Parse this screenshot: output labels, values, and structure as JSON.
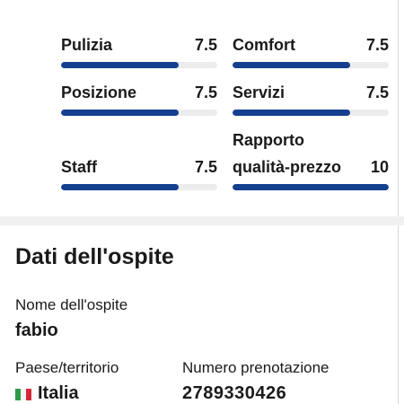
{
  "ratings": [
    {
      "label": "Pulizia",
      "score": 7.5
    },
    {
      "label": "Comfort",
      "score": 7.5
    },
    {
      "label": "Posizione",
      "score": 7.5
    },
    {
      "label": "Servizi",
      "score": 7.5
    },
    {
      "label": "Staff",
      "score": 7.5
    },
    {
      "label": "Rapporto qualità-prezzo",
      "score": 10
    }
  ],
  "guest": {
    "title": "Dati dell'ospite",
    "name_label": "Nome dell'ospite",
    "name": "fabio",
    "country_label": "Paese/territorio",
    "country": "Italia",
    "booking_label": "Numero prenotazione",
    "booking_number": "2789330426"
  }
}
